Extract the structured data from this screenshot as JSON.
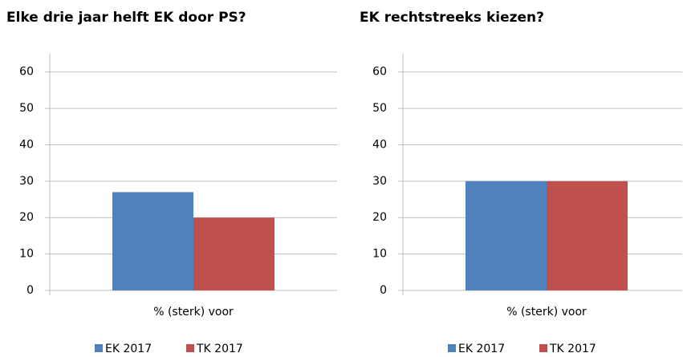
{
  "chart_data": [
    {
      "type": "bar",
      "title": "Elke drie jaar helft EK door PS?",
      "categories": [
        "% (sterk) voor"
      ],
      "series": [
        {
          "name": "EK 2017",
          "color": "#4f81bd",
          "values": [
            27
          ]
        },
        {
          "name": "TK 2017",
          "color": "#c0504d",
          "values": [
            20
          ]
        }
      ],
      "ylim": [
        0,
        65
      ],
      "yticks": [
        0,
        10,
        20,
        30,
        40,
        50,
        60
      ],
      "grid": true
    },
    {
      "type": "bar",
      "title": "EK rechtstreeks kiezen?",
      "categories": [
        "% (sterk) voor"
      ],
      "series": [
        {
          "name": "EK 2017",
          "color": "#4f81bd",
          "values": [
            30
          ]
        },
        {
          "name": "TK 2017",
          "color": "#c0504d",
          "values": [
            30
          ]
        }
      ],
      "ylim": [
        0,
        65
      ],
      "yticks": [
        0,
        10,
        20,
        30,
        40,
        50,
        60
      ],
      "grid": true
    }
  ]
}
